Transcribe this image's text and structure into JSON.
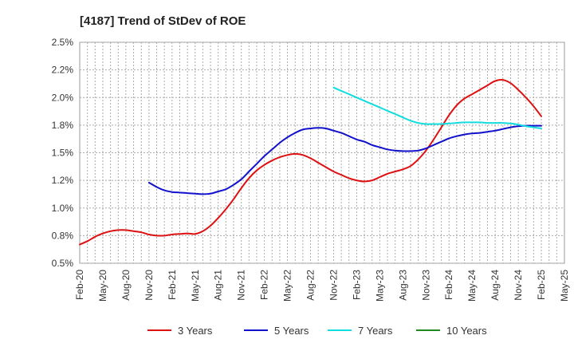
{
  "chart_data": {
    "type": "line",
    "title": "[4187]  Trend of StDev of ROE",
    "xlabel": "",
    "ylabel": "",
    "ylim": [
      0.5,
      2.5
    ],
    "y_ticks": [
      "0.5%",
      "0.8%",
      "1.0%",
      "1.2%",
      "1.5%",
      "1.8%",
      "2.0%",
      "2.2%",
      "2.5%"
    ],
    "y_tick_values": [
      0.5,
      0.75,
      1.0,
      1.25,
      1.5,
      1.75,
      2.0,
      2.25,
      2.5
    ],
    "x_ticks": [
      "Feb-20",
      "May-20",
      "Aug-20",
      "Nov-20",
      "Feb-21",
      "May-21",
      "Aug-21",
      "Nov-21",
      "Feb-22",
      "May-22",
      "Aug-22",
      "Nov-22",
      "Feb-23",
      "May-23",
      "Aug-23",
      "Nov-23",
      "Feb-24",
      "May-24",
      "Aug-24",
      "Nov-24",
      "Feb-25",
      "May-25"
    ],
    "grid": true,
    "legend_position": "bottom",
    "series": [
      {
        "name": "3 Years",
        "color": "#dd1111",
        "x": [
          "Feb-20",
          "Mar-20",
          "Apr-20",
          "May-20",
          "Jun-20",
          "Jul-20",
          "Aug-20",
          "Sep-20",
          "Oct-20",
          "Nov-20",
          "Dec-20",
          "Jan-21",
          "Feb-21",
          "Mar-21",
          "Apr-21",
          "May-21",
          "Jun-21",
          "Jul-21",
          "Aug-21",
          "Sep-21",
          "Oct-21",
          "Nov-21",
          "Dec-21",
          "Jan-22",
          "Feb-22",
          "Mar-22",
          "Apr-22",
          "May-22",
          "Jun-22",
          "Jul-22",
          "Aug-22",
          "Sep-22",
          "Oct-22",
          "Nov-22",
          "Dec-22",
          "Jan-23",
          "Feb-23",
          "Mar-23",
          "Apr-23",
          "May-23",
          "Jun-23",
          "Jul-23",
          "Aug-23",
          "Sep-23",
          "Oct-23",
          "Nov-23",
          "Dec-23",
          "Jan-24",
          "Feb-24",
          "Mar-24",
          "Apr-24",
          "May-24",
          "Jun-24",
          "Jul-24",
          "Aug-24",
          "Sep-24",
          "Oct-24",
          "Nov-24",
          "Dec-24",
          "Jan-25",
          "Feb-25"
        ],
        "values": [
          0.67,
          0.7,
          0.74,
          0.77,
          0.79,
          0.8,
          0.8,
          0.79,
          0.78,
          0.76,
          0.75,
          0.75,
          0.76,
          0.765,
          0.77,
          0.765,
          0.79,
          0.84,
          0.91,
          0.99,
          1.08,
          1.18,
          1.27,
          1.34,
          1.39,
          1.43,
          1.46,
          1.48,
          1.49,
          1.48,
          1.45,
          1.41,
          1.37,
          1.33,
          1.3,
          1.27,
          1.25,
          1.24,
          1.25,
          1.28,
          1.31,
          1.33,
          1.35,
          1.38,
          1.44,
          1.52,
          1.62,
          1.73,
          1.84,
          1.93,
          1.99,
          2.03,
          2.07,
          2.11,
          2.15,
          2.16,
          2.13,
          2.07,
          2.0,
          1.92,
          1.83
        ]
      },
      {
        "name": "5 Years",
        "color": "#1111cc",
        "x": [
          "Nov-20",
          "Dec-20",
          "Jan-21",
          "Feb-21",
          "Mar-21",
          "Apr-21",
          "May-21",
          "Jun-21",
          "Jul-21",
          "Aug-21",
          "Sep-21",
          "Oct-21",
          "Nov-21",
          "Dec-21",
          "Jan-22",
          "Feb-22",
          "Mar-22",
          "Apr-22",
          "May-22",
          "Jun-22",
          "Jul-22",
          "Aug-22",
          "Sep-22",
          "Oct-22",
          "Nov-22",
          "Dec-22",
          "Jan-23",
          "Feb-23",
          "Mar-23",
          "Apr-23",
          "May-23",
          "Jun-23",
          "Jul-23",
          "Aug-23",
          "Sep-23",
          "Oct-23",
          "Nov-23",
          "Dec-23",
          "Jan-24",
          "Feb-24",
          "Mar-24",
          "Apr-24",
          "May-24",
          "Jun-24",
          "Jul-24",
          "Aug-24",
          "Sep-24",
          "Oct-24",
          "Nov-24",
          "Dec-24",
          "Jan-25",
          "Feb-25"
        ],
        "values": [
          1.23,
          1.19,
          1.16,
          1.145,
          1.14,
          1.135,
          1.13,
          1.125,
          1.13,
          1.15,
          1.17,
          1.21,
          1.26,
          1.33,
          1.4,
          1.47,
          1.53,
          1.59,
          1.64,
          1.68,
          1.71,
          1.72,
          1.725,
          1.72,
          1.7,
          1.68,
          1.65,
          1.62,
          1.6,
          1.57,
          1.55,
          1.53,
          1.52,
          1.515,
          1.515,
          1.52,
          1.54,
          1.57,
          1.6,
          1.63,
          1.65,
          1.665,
          1.675,
          1.68,
          1.69,
          1.7,
          1.715,
          1.73,
          1.74,
          1.745,
          1.745,
          1.745
        ]
      },
      {
        "name": "7 Years",
        "color": "#11dddd",
        "x": [
          "Nov-22",
          "Dec-22",
          "Jan-23",
          "Feb-23",
          "Mar-23",
          "Apr-23",
          "May-23",
          "Jun-23",
          "Jul-23",
          "Aug-23",
          "Sep-23",
          "Oct-23",
          "Nov-23",
          "Dec-23",
          "Jan-24",
          "Feb-24",
          "Mar-24",
          "Apr-24",
          "May-24",
          "Jun-24",
          "Jul-24",
          "Aug-24",
          "Sep-24",
          "Oct-24",
          "Nov-24",
          "Dec-24",
          "Jan-25",
          "Feb-25"
        ],
        "values": [
          2.09,
          2.06,
          2.03,
          2.0,
          1.97,
          1.94,
          1.91,
          1.88,
          1.85,
          1.82,
          1.79,
          1.77,
          1.76,
          1.76,
          1.76,
          1.765,
          1.77,
          1.775,
          1.775,
          1.775,
          1.77,
          1.77,
          1.77,
          1.765,
          1.755,
          1.74,
          1.73,
          1.72
        ]
      },
      {
        "name": "10 Years",
        "color": "#228822",
        "x": [],
        "values": []
      }
    ]
  }
}
